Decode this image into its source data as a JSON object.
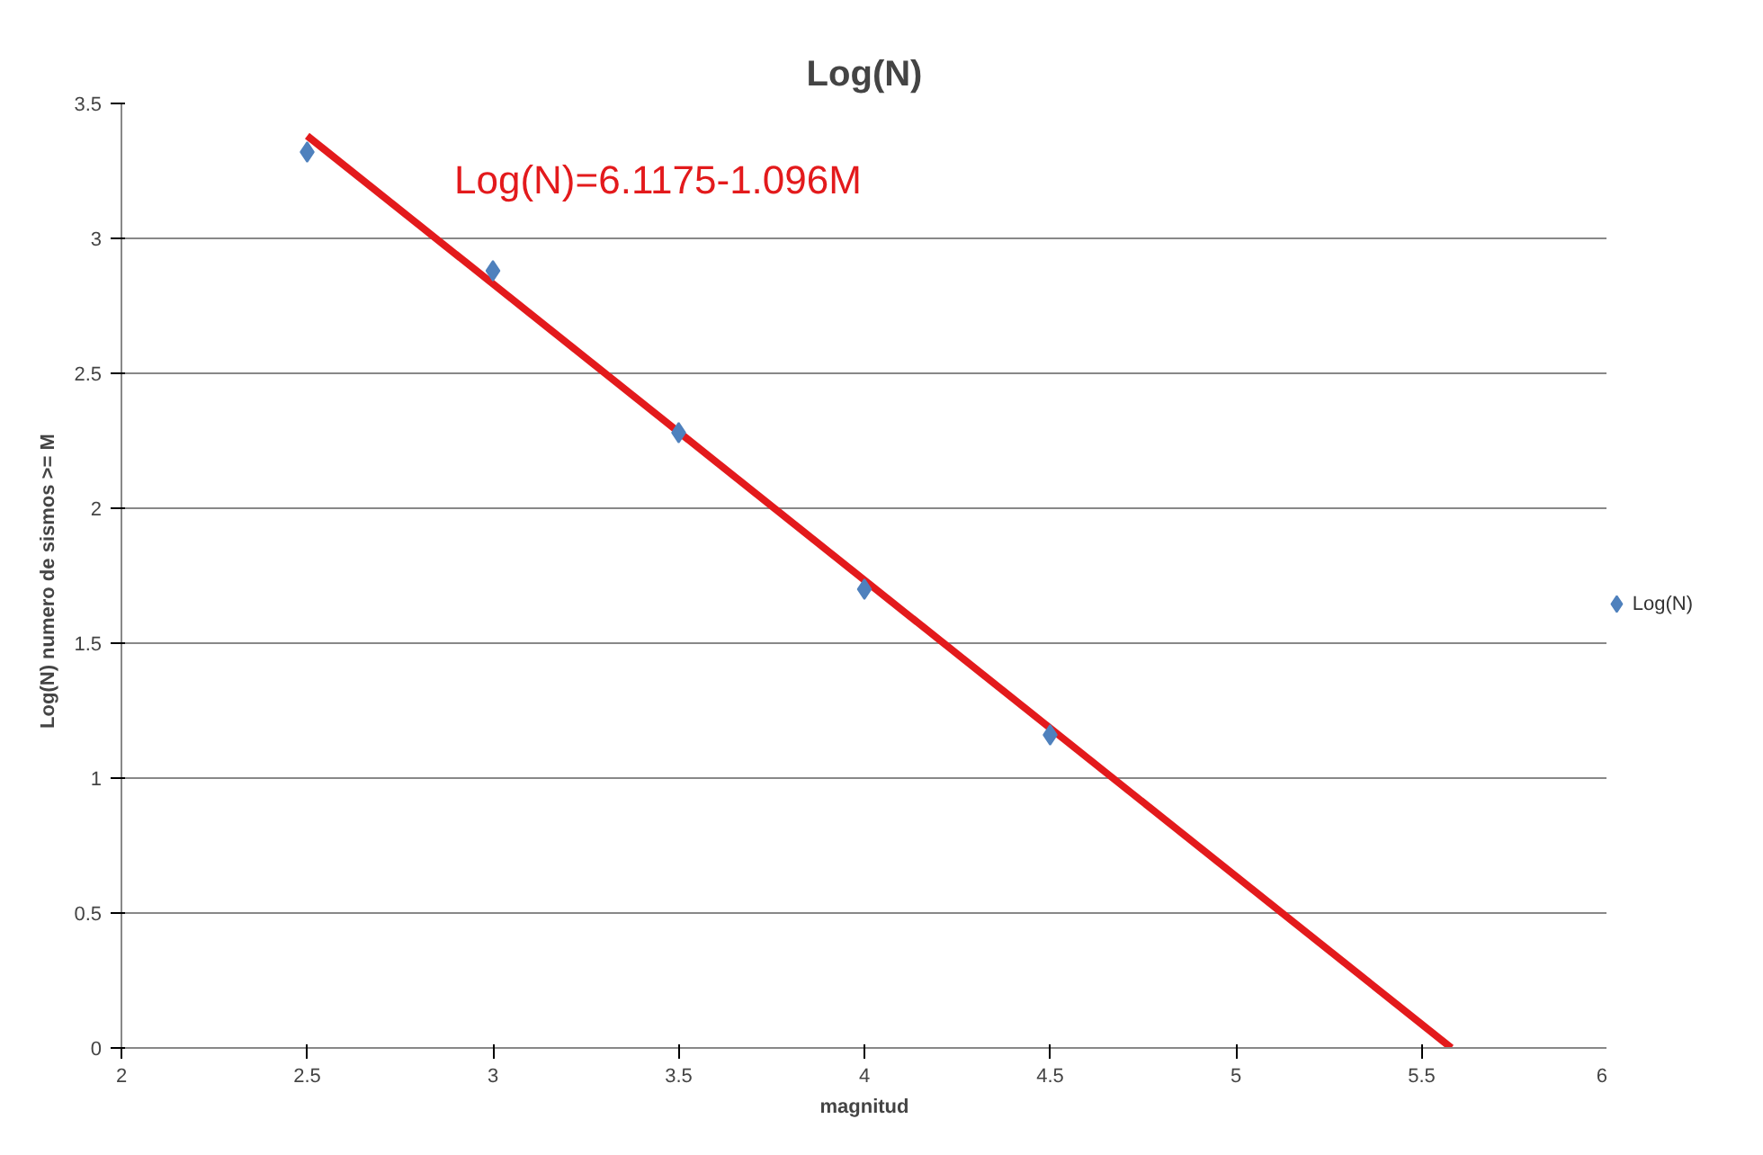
{
  "chart_data": {
    "type": "scatter",
    "title": "Log(N)",
    "xlabel": "magnitud",
    "ylabel": "Log(N)  numero de sismos  >= M",
    "x": [
      2.5,
      3,
      3.5,
      4,
      4.5
    ],
    "series": [
      {
        "name": "Log(N)",
        "color": "#4f81bd",
        "values": [
          3.32,
          2.88,
          2.28,
          1.7,
          1.16
        ],
        "marker": "diamond"
      },
      {
        "type": "line",
        "color": "#e31a1c",
        "x": [
          2.5,
          5.58
        ],
        "values": [
          3.38,
          0.0
        ],
        "line_style": "solid",
        "marker": "none"
      }
    ],
    "annotations": [
      "Log(N)=6.1175-1.096M"
    ],
    "xlim": [
      2,
      6
    ],
    "xticks": [
      2,
      2.5,
      3,
      3.5,
      4,
      4.5,
      5,
      5.5,
      6
    ],
    "ylim": [
      0,
      3.5
    ],
    "yticks": [
      0,
      0.5,
      1,
      1.5,
      2,
      2.5,
      3,
      3.5
    ],
    "grid": "y",
    "legend": "right"
  }
}
